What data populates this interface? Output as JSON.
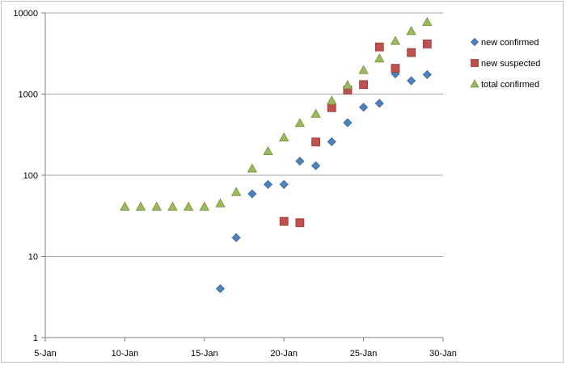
{
  "chart_data": {
    "type": "scatter",
    "title": "",
    "xlabel": "",
    "ylabel": "",
    "x_scale": "date",
    "y_scale": "log",
    "xlim": [
      "5-Jan",
      "30-Jan"
    ],
    "ylim": [
      1,
      10000
    ],
    "x_ticks": [
      "5-Jan",
      "10-Jan",
      "15-Jan",
      "20-Jan",
      "25-Jan",
      "30-Jan"
    ],
    "y_ticks": [
      "1",
      "10",
      "100",
      "1000",
      "10000"
    ],
    "grid": "horizontal",
    "legend_position": "right",
    "series": [
      {
        "name": "new confirmed",
        "marker": "diamond",
        "color": "#4f81bd",
        "points": [
          {
            "x": "16-Jan",
            "y": 4
          },
          {
            "x": "17-Jan",
            "y": 17
          },
          {
            "x": "18-Jan",
            "y": 59
          },
          {
            "x": "19-Jan",
            "y": 77
          },
          {
            "x": "20-Jan",
            "y": 77
          },
          {
            "x": "21-Jan",
            "y": 149
          },
          {
            "x": "22-Jan",
            "y": 131
          },
          {
            "x": "23-Jan",
            "y": 259
          },
          {
            "x": "24-Jan",
            "y": 444
          },
          {
            "x": "25-Jan",
            "y": 688
          },
          {
            "x": "26-Jan",
            "y": 769
          },
          {
            "x": "27-Jan",
            "y": 1771
          },
          {
            "x": "28-Jan",
            "y": 1459
          },
          {
            "x": "29-Jan",
            "y": 1737
          }
        ]
      },
      {
        "name": "new suspected",
        "marker": "square",
        "color": "#c0504d",
        "points": [
          {
            "x": "20-Jan",
            "y": 27
          },
          {
            "x": "21-Jan",
            "y": 26
          },
          {
            "x": "22-Jan",
            "y": 257
          },
          {
            "x": "23-Jan",
            "y": 680
          },
          {
            "x": "24-Jan",
            "y": 1118
          },
          {
            "x": "25-Jan",
            "y": 1309
          },
          {
            "x": "26-Jan",
            "y": 3806
          },
          {
            "x": "27-Jan",
            "y": 2077
          },
          {
            "x": "28-Jan",
            "y": 3248
          },
          {
            "x": "29-Jan",
            "y": 4148
          }
        ]
      },
      {
        "name": "total confirmed",
        "marker": "triangle",
        "color": "#9bbb59",
        "points": [
          {
            "x": "10-Jan",
            "y": 41
          },
          {
            "x": "11-Jan",
            "y": 41
          },
          {
            "x": "12-Jan",
            "y": 41
          },
          {
            "x": "13-Jan",
            "y": 41
          },
          {
            "x": "14-Jan",
            "y": 41
          },
          {
            "x": "15-Jan",
            "y": 41
          },
          {
            "x": "16-Jan",
            "y": 45
          },
          {
            "x": "17-Jan",
            "y": 62
          },
          {
            "x": "18-Jan",
            "y": 121
          },
          {
            "x": "19-Jan",
            "y": 198
          },
          {
            "x": "20-Jan",
            "y": 291
          },
          {
            "x": "21-Jan",
            "y": 440
          },
          {
            "x": "22-Jan",
            "y": 571
          },
          {
            "x": "23-Jan",
            "y": 830
          },
          {
            "x": "24-Jan",
            "y": 1287
          },
          {
            "x": "25-Jan",
            "y": 1975
          },
          {
            "x": "26-Jan",
            "y": 2744
          },
          {
            "x": "27-Jan",
            "y": 4515
          },
          {
            "x": "28-Jan",
            "y": 5974
          },
          {
            "x": "29-Jan",
            "y": 7711
          }
        ]
      }
    ]
  }
}
